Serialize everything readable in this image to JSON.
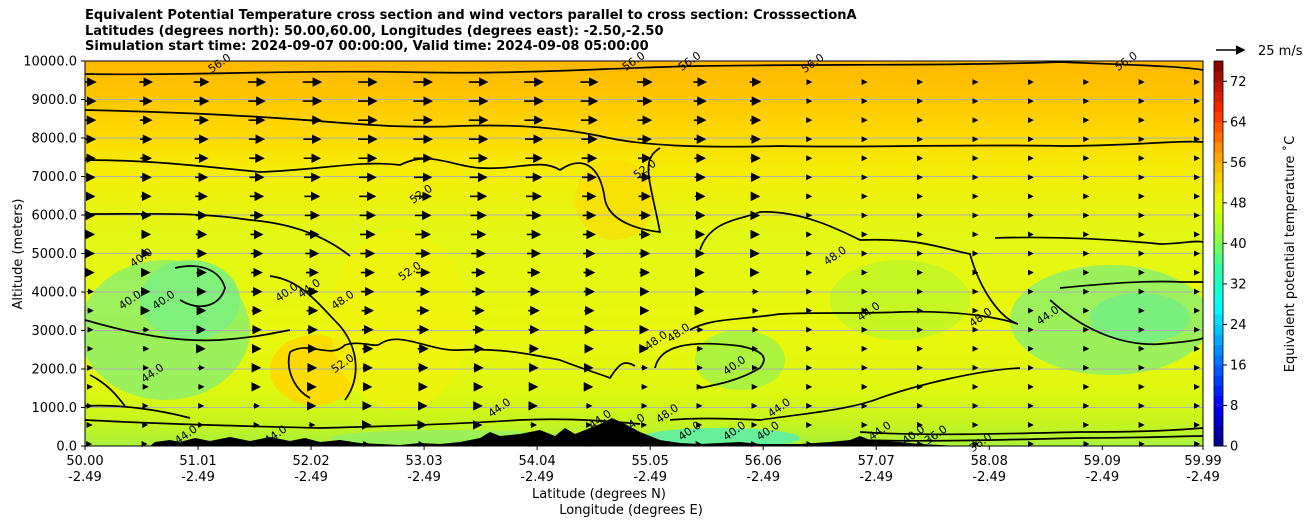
{
  "title": {
    "line1": "Equivalent Potential Temperature cross section and wind vectors parallel to cross section: CrosssectionA",
    "line2": "Latitudes (degrees north): 50.00,60.00, Longitudes (degrees east): -2.50,-2.50",
    "line3": "Simulation start time: 2024-09-07 00:00:00, Valid time: 2024-09-08 05:00:00"
  },
  "quiver_key": "25 m/s",
  "chart_data": {
    "type": "heatmap",
    "ylabel": "Altitude (meters)",
    "xlabel_line1": "Latitude (degrees N)",
    "xlabel_line2": "Longitude (degrees E)",
    "colorbar_label": "Equivalent potential temperature ˚C",
    "ylim": [
      0,
      10000
    ],
    "xlim": [
      50.0,
      59.99
    ],
    "y_ticks": [
      "0.0",
      "1000.0",
      "2000.0",
      "3000.0",
      "4000.0",
      "5000.0",
      "6000.0",
      "7000.0",
      "8000.0",
      "9000.0",
      "10000.0"
    ],
    "x_ticks": [
      {
        "lat": "50.00",
        "lon": "-2.49"
      },
      {
        "lat": "51.01",
        "lon": "-2.49"
      },
      {
        "lat": "52.02",
        "lon": "-2.49"
      },
      {
        "lat": "53.03",
        "lon": "-2.49"
      },
      {
        "lat": "54.04",
        "lon": "-2.49"
      },
      {
        "lat": "55.05",
        "lon": "-2.49"
      },
      {
        "lat": "56.06",
        "lon": "-2.49"
      },
      {
        "lat": "57.07",
        "lon": "-2.49"
      },
      {
        "lat": "58.08",
        "lon": "-2.49"
      },
      {
        "lat": "59.09",
        "lon": "-2.49"
      },
      {
        "lat": "59.99",
        "lon": "-2.49"
      }
    ],
    "colorbar_ticks": [
      "0",
      "8",
      "16",
      "24",
      "32",
      "40",
      "48",
      "56",
      "64",
      "72"
    ],
    "colorbar_range": [
      0,
      76
    ],
    "contour_labels": [
      {
        "text": "56.0",
        "lat": 51.2,
        "alt": 9950
      },
      {
        "text": "56.0",
        "lat": 54.9,
        "alt": 10000
      },
      {
        "text": "56.0",
        "lat": 55.4,
        "alt": 10000
      },
      {
        "text": "56.0",
        "lat": 56.5,
        "alt": 9950
      },
      {
        "text": "56.0",
        "lat": 59.3,
        "alt": 10000
      },
      {
        "text": "52.0",
        "lat": 53.0,
        "alt": 6550
      },
      {
        "text": "52.0",
        "lat": 55.0,
        "alt": 7200
      },
      {
        "text": "52.0",
        "lat": 52.9,
        "alt": 4550
      },
      {
        "text": "52.0",
        "lat": 52.3,
        "alt": 2150
      },
      {
        "text": "48.0",
        "lat": 52.3,
        "alt": 3800
      },
      {
        "text": "48.0",
        "lat": 56.7,
        "alt": 4950
      },
      {
        "text": "48.0",
        "lat": 58.0,
        "alt": 3350
      },
      {
        "text": "48.0",
        "lat": 55.3,
        "alt": 2950
      },
      {
        "text": "48.0",
        "lat": 55.1,
        "alt": 2750
      },
      {
        "text": "48.0",
        "lat": 55.2,
        "alt": 850
      },
      {
        "text": "44.0",
        "lat": 52.0,
        "alt": 4100
      },
      {
        "text": "44.0",
        "lat": 57.0,
        "alt": 3500
      },
      {
        "text": "44.0",
        "lat": 58.6,
        "alt": 3400
      },
      {
        "text": "44.0",
        "lat": 50.6,
        "alt": 1900
      },
      {
        "text": "44.0",
        "lat": 53.7,
        "alt": 1000
      },
      {
        "text": "44.0",
        "lat": 54.6,
        "alt": 700
      },
      {
        "text": "44.0",
        "lat": 54.9,
        "alt": 600
      },
      {
        "text": "44.0",
        "lat": 56.2,
        "alt": 1000
      },
      {
        "text": "44.0",
        "lat": 51.7,
        "alt": 300
      },
      {
        "text": "44.0",
        "lat": 50.9,
        "alt": 300
      },
      {
        "text": "44.0",
        "lat": 57.1,
        "alt": 400
      },
      {
        "text": "40.0",
        "lat": 50.5,
        "alt": 4900
      },
      {
        "text": "40.0",
        "lat": 50.4,
        "alt": 3800
      },
      {
        "text": "40.0",
        "lat": 50.7,
        "alt": 3800
      },
      {
        "text": "40.0",
        "lat": 51.8,
        "alt": 4000
      },
      {
        "text": "40.0",
        "lat": 55.8,
        "alt": 2100
      },
      {
        "text": "40.0",
        "lat": 55.4,
        "alt": 400
      },
      {
        "text": "40.0",
        "lat": 55.8,
        "alt": 400
      },
      {
        "text": "40.0",
        "lat": 56.1,
        "alt": 400
      },
      {
        "text": "40.0",
        "lat": 57.4,
        "alt": 300
      },
      {
        "text": "36.0",
        "lat": 57.6,
        "alt": 300
      },
      {
        "text": "36.0",
        "lat": 58.0,
        "alt": 100
      }
    ]
  }
}
